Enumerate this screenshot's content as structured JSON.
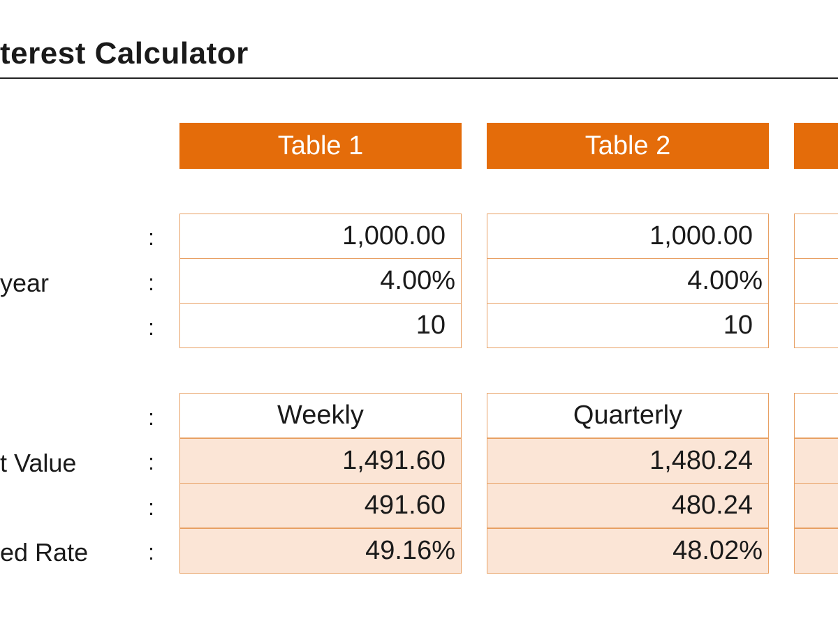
{
  "title": "terest Calculator",
  "row_labels": {
    "row2": "year",
    "row5": "t Value",
    "row7": "ed Rate"
  },
  "colon": ":",
  "tables": [
    {
      "header": "Table 1",
      "principal": "1,000.00",
      "rate": "4.00%",
      "years": "10",
      "frequency": "Weekly",
      "future_value": "1,491.60",
      "interest": "491.60",
      "effective_rate": "49.16%"
    },
    {
      "header": "Table 2",
      "principal": "1,000.00",
      "rate": "4.00%",
      "years": "10",
      "frequency": "Quarterly",
      "future_value": "1,480.24",
      "interest": "480.24",
      "effective_rate": "48.02%"
    },
    {
      "header": "",
      "principal": "",
      "rate": "",
      "years": "",
      "frequency": "",
      "future_value": "",
      "interest": "",
      "effective_rate": ""
    }
  ],
  "colors": {
    "header_bg": "#e46c0a",
    "border": "#e8a063",
    "result_fill": "#fbe5d6"
  }
}
